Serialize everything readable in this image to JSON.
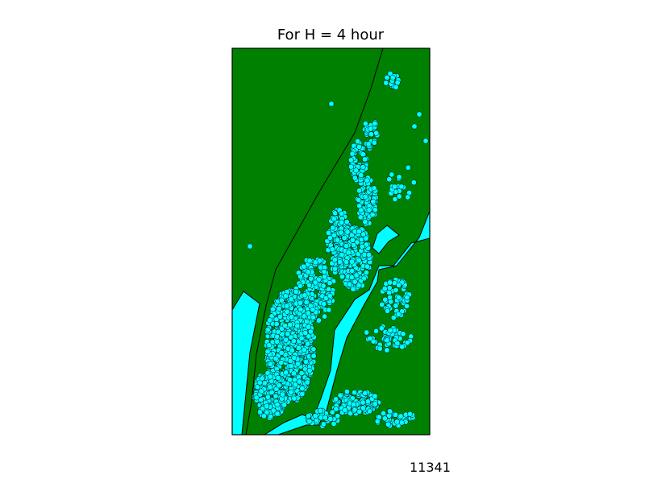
{
  "chart_data": {
    "type": "scatter",
    "title": "For H = 4 hour",
    "xlabel": "",
    "ylabel": "",
    "grid": false,
    "legend": "none",
    "colors": {
      "land": "#008000",
      "water": "#00ffff",
      "marker": "#00ffff",
      "marker_edge": "#000000",
      "frame": "#000000"
    },
    "annotation": "11341",
    "point_count": 11341
  }
}
